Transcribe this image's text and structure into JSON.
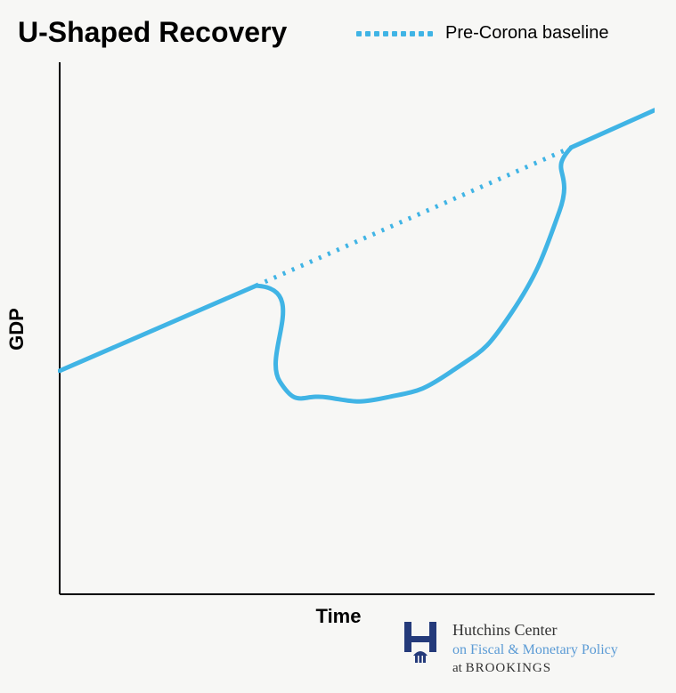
{
  "title": "U-Shaped Recovery",
  "legend": {
    "label": "Pre-Corona baseline",
    "color": "#40b4e5"
  },
  "chart": {
    "type": "line",
    "xlabel": "Time",
    "ylabel": "GDP",
    "background_color": "#f7f7f5",
    "axis_color": "#000000",
    "axis_width": 2,
    "xlim": [
      0,
      100
    ],
    "ylim": [
      0,
      100
    ],
    "baseline": {
      "color": "#40b4e5",
      "width": 5,
      "dash": "3 8",
      "points": [
        {
          "x": 33,
          "y": 58
        },
        {
          "x": 86,
          "y": 84
        }
      ]
    },
    "actual": {
      "color": "#40b4e5",
      "width": 5,
      "points": [
        {
          "x": 0,
          "y": 42
        },
        {
          "x": 33,
          "y": 58
        },
        {
          "x": 37,
          "y": 40
        },
        {
          "x": 45,
          "y": 37
        },
        {
          "x": 55,
          "y": 37
        },
        {
          "x": 66,
          "y": 42
        },
        {
          "x": 76,
          "y": 53
        },
        {
          "x": 84,
          "y": 72
        },
        {
          "x": 86,
          "y": 84
        },
        {
          "x": 100,
          "y": 91
        }
      ]
    }
  },
  "attribution": {
    "line1": "Hutchins Center",
    "line2": "on Fiscal & Monetary Policy",
    "line3_prefix": "at ",
    "line3_name": "BROOKINGS",
    "logo_color": "#243a7a"
  }
}
